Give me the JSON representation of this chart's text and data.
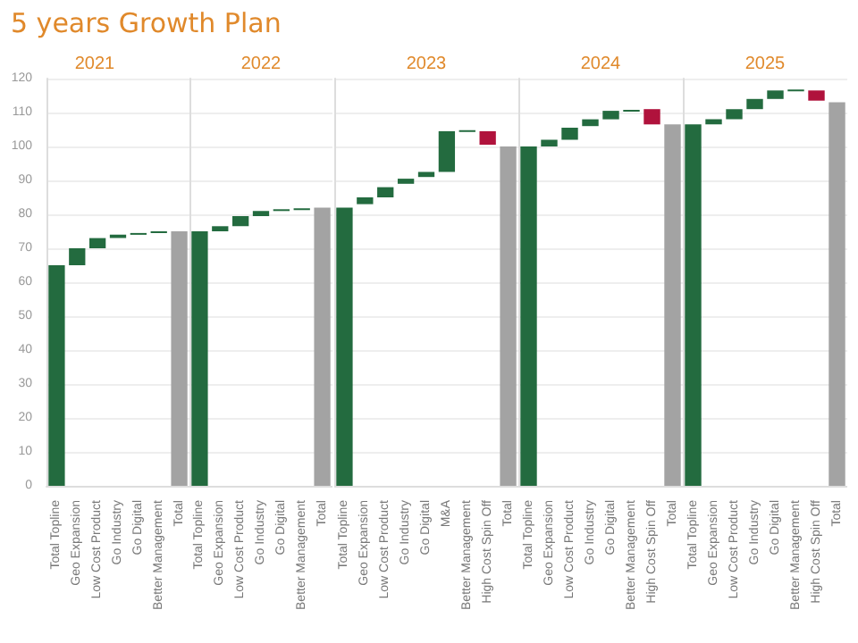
{
  "chart_data": [
    {
      "type": "bar",
      "title": "5 years Growth Plan",
      "subtitle": "2021",
      "categories": [
        "Total Topline",
        "Geo Expansion",
        "Low Cost Product",
        "Go Industry",
        "Go Digital",
        "Better Management",
        "Total"
      ],
      "values": [
        65,
        5,
        3,
        1,
        0.5,
        0.5,
        75
      ],
      "base": [
        0,
        65,
        70,
        73,
        74,
        74.5,
        0
      ],
      "colors": [
        "#236b3f",
        "#236b3f",
        "#236b3f",
        "#236b3f",
        "#236b3f",
        "#236b3f",
        "#a3a3a3"
      ],
      "ylim": [
        0,
        120
      ],
      "yticks": [
        0,
        10,
        20,
        30,
        40,
        50,
        60,
        70,
        80,
        90,
        100,
        110,
        120
      ],
      "grid": "y"
    },
    {
      "type": "bar",
      "subtitle": "2022",
      "categories": [
        "Total Topline",
        "Geo Expansion",
        "Low Cost Product",
        "Go Industry",
        "Go Digital",
        "Better Management",
        "Total"
      ],
      "values": [
        75,
        1.5,
        3,
        1.5,
        0.5,
        0.3,
        82
      ],
      "base": [
        0,
        75,
        76.5,
        79.5,
        81,
        81.5,
        0
      ],
      "colors": [
        "#236b3f",
        "#236b3f",
        "#236b3f",
        "#236b3f",
        "#236b3f",
        "#236b3f",
        "#a3a3a3"
      ],
      "ylim": [
        0,
        120
      ],
      "yticks": [
        0,
        10,
        20,
        30,
        40,
        50,
        60,
        70,
        80,
        90,
        100,
        110,
        120
      ],
      "grid": "y",
      "tick_labels": "x"
    },
    {
      "type": "bar",
      "subtitle": "2023",
      "categories": [
        "Total Topline",
        "Geo Expansion",
        "Low Cost Product",
        "Go Industry",
        "Go Digital",
        "M&A",
        "Better Management",
        "High Cost Spin Off",
        "Total"
      ],
      "values": [
        82,
        2,
        3,
        1.5,
        1.5,
        12,
        0.3,
        -4,
        100
      ],
      "base": [
        0,
        83,
        85,
        89,
        91,
        92.5,
        104.5,
        104.5,
        0
      ],
      "colors": [
        "#236b3f",
        "#236b3f",
        "#236b3f",
        "#236b3f",
        "#236b3f",
        "#236b3f",
        "#236b3f",
        "#b0123c",
        "#a3a3a3"
      ],
      "ylim": [
        0,
        120
      ],
      "yticks": [
        0,
        10,
        20,
        30,
        40,
        50,
        60,
        70,
        80,
        90,
        100,
        110,
        120
      ],
      "grid": "y",
      "tick_labels": "x"
    },
    {
      "type": "bar",
      "subtitle": "2024",
      "categories": [
        "Total Topline",
        "Geo Expansion",
        "Low Cost Product",
        "Go Industry",
        "Go Digital",
        "Better Management",
        "High Cost Spin Off",
        "Total"
      ],
      "values": [
        100,
        2,
        3.5,
        2,
        2.5,
        0.3,
        -4.5,
        106.5
      ],
      "base": [
        0,
        100,
        102,
        106,
        108,
        110.5,
        111,
        0
      ],
      "colors": [
        "#236b3f",
        "#236b3f",
        "#236b3f",
        "#236b3f",
        "#236b3f",
        "#236b3f",
        "#b0123c",
        "#a3a3a3"
      ],
      "ylim": [
        0,
        120
      ],
      "yticks": [
        0,
        10,
        20,
        30,
        40,
        50,
        60,
        70,
        80,
        90,
        100,
        110,
        120
      ],
      "grid": "y",
      "tick_labels": "x"
    },
    {
      "type": "bar",
      "subtitle": "2025",
      "categories": [
        "Total Topline",
        "Geo Expansion",
        "Low Cost Product",
        "Go Industry",
        "Go Digital",
        "Better Management",
        "High Cost Spin Off",
        "Total"
      ],
      "values": [
        106.5,
        1.5,
        3,
        3,
        2.5,
        0.3,
        -3,
        113
      ],
      "base": [
        0,
        106.5,
        108,
        111,
        114,
        116.5,
        116.5,
        0
      ],
      "colors": [
        "#236b3f",
        "#236b3f",
        "#236b3f",
        "#236b3f",
        "#236b3f",
        "#236b3f",
        "#b0123c",
        "#a3a3a3"
      ],
      "ylim": [
        0,
        120
      ],
      "yticks": [
        0,
        10,
        20,
        30,
        40,
        50,
        60,
        70,
        80,
        90,
        100,
        110,
        120
      ],
      "grid": "y",
      "tick_labels": "x"
    }
  ]
}
